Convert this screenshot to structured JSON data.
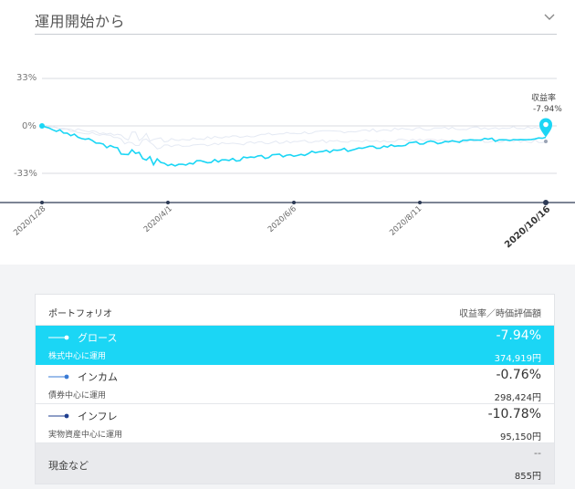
{
  "period": {
    "label": "運用開始から"
  },
  "chart": {
    "y_ticks": [
      {
        "label": "33%",
        "value": 33
      },
      {
        "label": "0%",
        "value": 0
      },
      {
        "label": "-33%",
        "value": -33
      }
    ],
    "x_ticks": [
      "2020/1/28",
      "2020/4/1",
      "2020/6/6",
      "2020/8/11",
      "2020/10/16"
    ],
    "callout": {
      "title": "収益率",
      "value": "-7.94%"
    },
    "colors": {
      "primary": "#1bd6f5",
      "ghost": "#e4e9f3",
      "axis": "#2d3a55"
    }
  },
  "chart_data": {
    "type": "line",
    "ylim": [
      -33,
      33
    ],
    "x": [
      "2020/1/28",
      "2020/4/1",
      "2020/6/6",
      "2020/8/11",
      "2020/10/16"
    ],
    "series": [
      {
        "name": "グロース",
        "values": [
          0,
          -27,
          -20,
          -12,
          -7.94
        ]
      },
      {
        "name": "インカム",
        "values": [
          0,
          -10,
          -5,
          -2,
          -0.76
        ]
      },
      {
        "name": "インフレ",
        "values": [
          0,
          -14,
          -11,
          -10,
          -10.78
        ]
      }
    ]
  },
  "portfolio": {
    "header_left": "ポートフォリオ",
    "header_right": "収益率／時価評価額",
    "items": [
      {
        "name": "グロース",
        "desc": "株式中心に運用",
        "pct": "-7.94%",
        "amount": "374,919円",
        "color": "#ffffff"
      },
      {
        "name": "インカム",
        "desc": "債券中心に運用",
        "pct": "-0.76%",
        "amount": "298,424円",
        "color": "#3a7bd5"
      },
      {
        "name": "インフレ",
        "desc": "実物資産中心に運用",
        "pct": "-10.78%",
        "amount": "95,150円",
        "color": "#1f3f8f"
      }
    ],
    "cash": {
      "label": "現金など",
      "pct": "--",
      "amount": "855円"
    }
  }
}
